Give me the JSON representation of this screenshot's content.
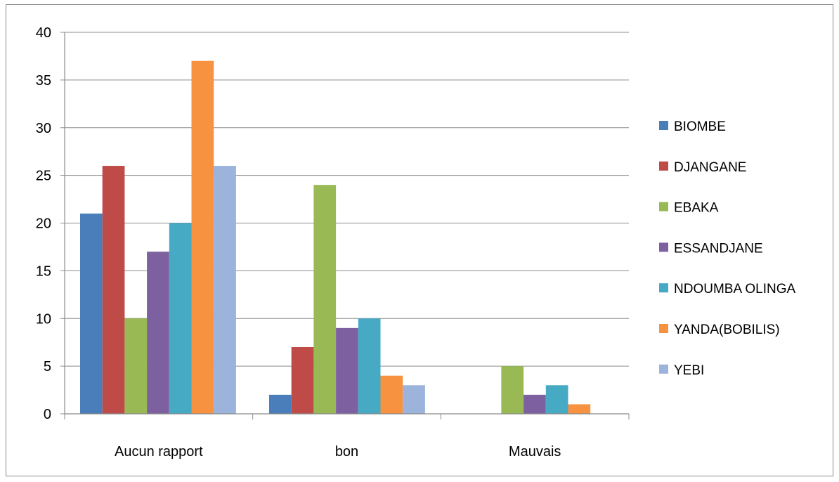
{
  "chart_data": {
    "type": "bar",
    "categories": [
      "Aucun rapport",
      "bon",
      "Mauvais"
    ],
    "series": [
      {
        "name": "BIOMBE",
        "color": "#4a7ebb",
        "values": [
          21,
          2,
          0
        ]
      },
      {
        "name": "DJANGANE",
        "color": "#be4b48",
        "values": [
          26,
          7,
          0
        ]
      },
      {
        "name": "EBAKA",
        "color": "#98b954",
        "values": [
          10,
          24,
          5
        ]
      },
      {
        "name": "ESSANDJANE",
        "color": "#7d60a0",
        "values": [
          17,
          9,
          2
        ]
      },
      {
        "name": "NDOUMBA OLINGA",
        "color": "#46aac5",
        "values": [
          20,
          10,
          3
        ]
      },
      {
        "name": "YANDA(BOBILIS)",
        "color": "#f69240",
        "values": [
          37,
          4,
          1
        ]
      },
      {
        "name": "YEBI",
        "color": "#9cb4dc",
        "values": [
          26,
          3,
          0
        ]
      }
    ],
    "yticks": [
      "0",
      "5",
      "10",
      "15",
      "20",
      "25",
      "30",
      "35",
      "40"
    ],
    "ylim": [
      0,
      40
    ],
    "grid": true,
    "legend_position": "right"
  }
}
